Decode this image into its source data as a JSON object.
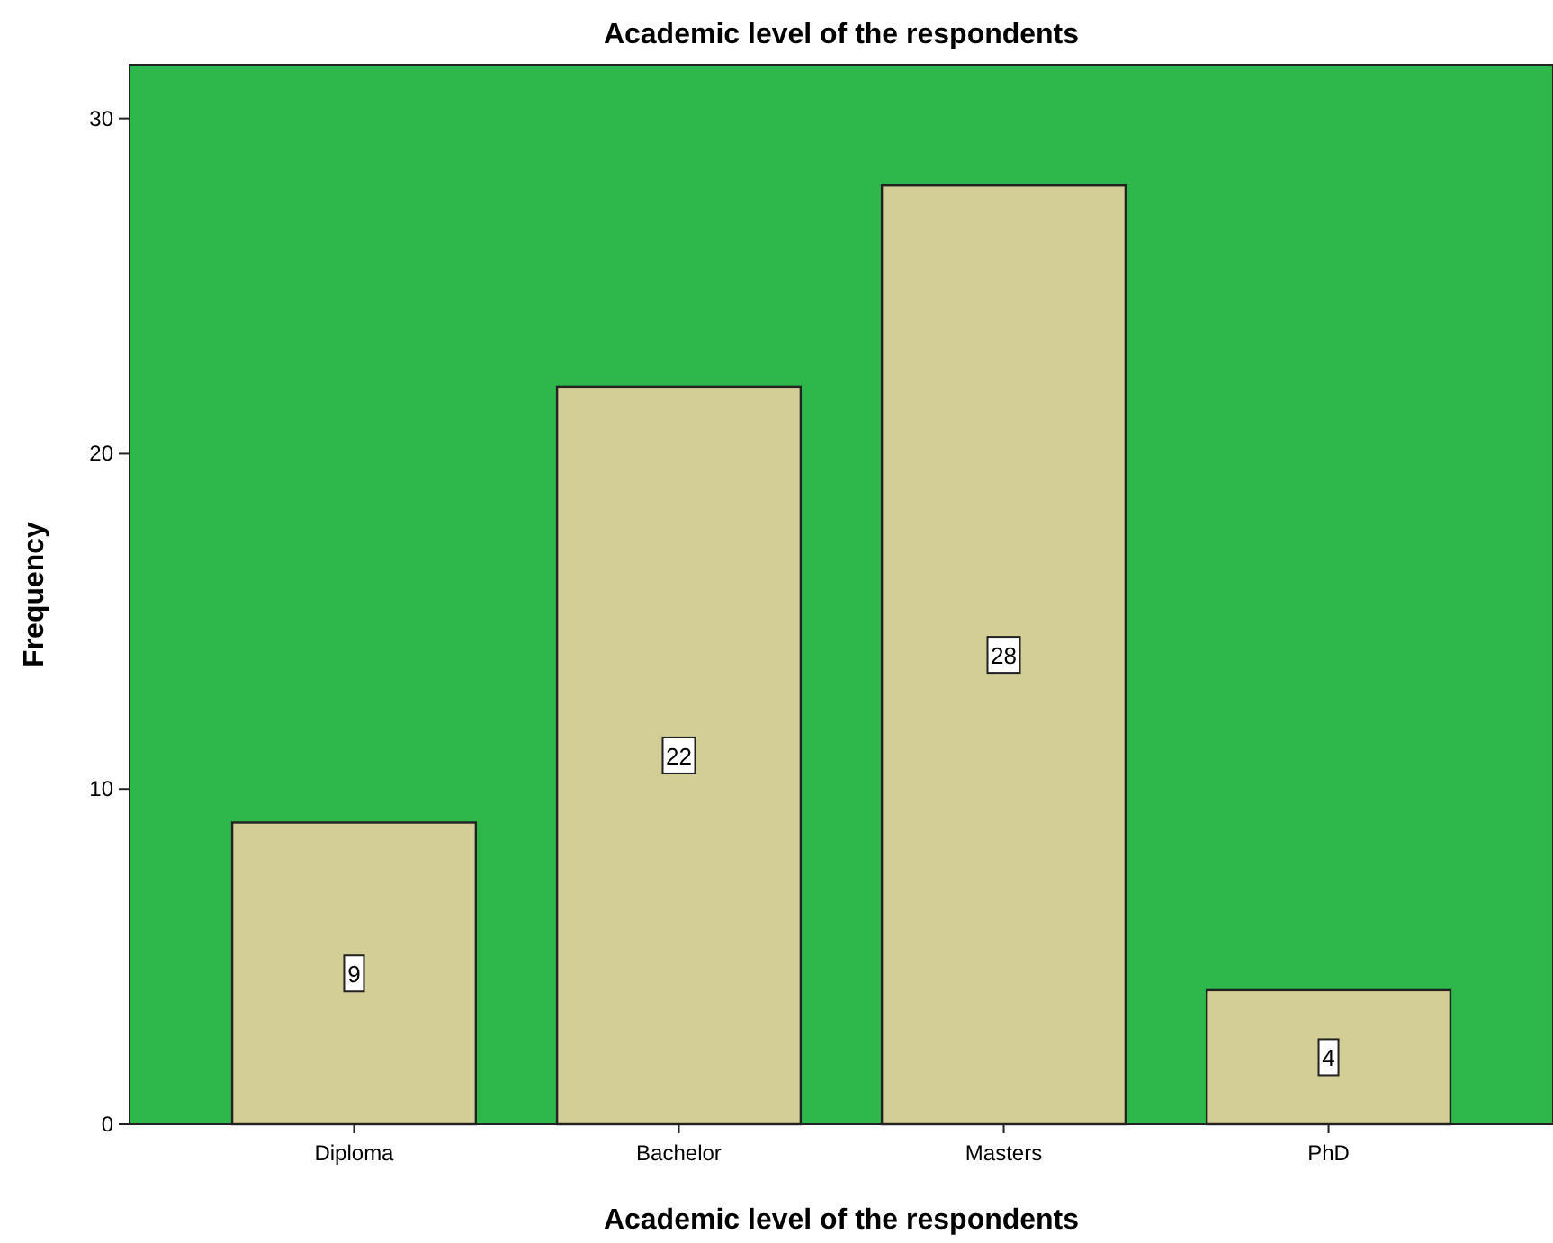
{
  "chart_data": {
    "type": "bar",
    "title": "Academic level of the respondents",
    "xlabel": "Academic level of the respondents",
    "ylabel": "Frequency",
    "categories": [
      "Diploma",
      "Bachelor",
      "Masters",
      "PhD"
    ],
    "values": [
      9,
      22,
      28,
      4
    ],
    "color": "#d3cd96",
    "ylim": [
      0,
      31.6
    ],
    "yticks": [
      0,
      10,
      20,
      30
    ],
    "grid": false,
    "data_labels": true
  }
}
